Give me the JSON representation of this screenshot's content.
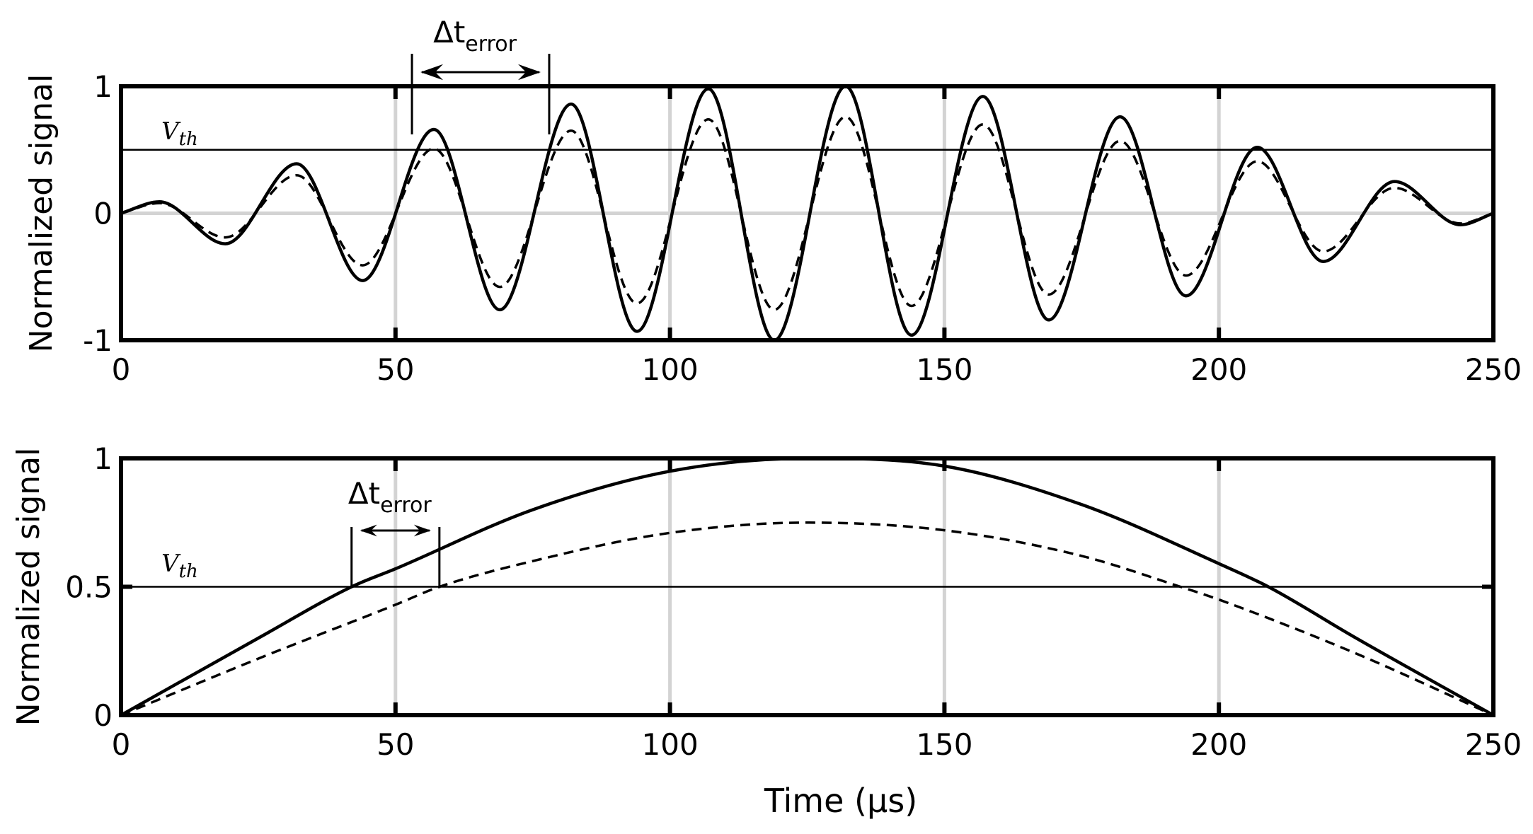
{
  "colors": {
    "curve": "#000000",
    "grid": "#d3d3d3",
    "frame": "#000000",
    "background": "#ffffff"
  },
  "chart_data": [
    {
      "type": "line",
      "ylabel": "Normalized signal",
      "xlim": [
        0,
        250
      ],
      "ylim": [
        -1,
        1
      ],
      "xticks": [
        "0",
        "50",
        "100",
        "150",
        "200",
        "250"
      ],
      "yticks": [
        "-1",
        "0",
        "1"
      ],
      "threshold": {
        "label": "V",
        "label_sub": "th",
        "value": 0.5
      },
      "annotation": {
        "label": "Δt",
        "label_sub": "error",
        "x_start": 53,
        "x_end": 78
      },
      "grid": "vertical",
      "series": [
        {
          "style": "solid",
          "x": [
            0,
            7,
            19,
            32,
            44,
            57,
            69,
            82,
            94,
            107,
            119,
            132,
            144,
            157,
            169,
            182,
            194,
            207,
            219,
            232,
            244,
            250
          ],
          "y": [
            0,
            0.09,
            -0.24,
            0.39,
            -0.53,
            0.66,
            -0.76,
            0.86,
            -0.93,
            0.98,
            -1.0,
            1.0,
            -0.96,
            0.92,
            -0.84,
            0.76,
            -0.65,
            0.52,
            -0.38,
            0.25,
            -0.09,
            0
          ]
        },
        {
          "style": "dashed",
          "x": [
            0,
            7,
            19,
            32,
            44,
            57,
            69,
            82,
            94,
            107,
            119,
            132,
            144,
            157,
            169,
            182,
            194,
            207,
            219,
            232,
            244,
            250
          ],
          "y": [
            0,
            0.08,
            -0.19,
            0.3,
            -0.41,
            0.51,
            -0.58,
            0.65,
            -0.71,
            0.74,
            -0.76,
            0.76,
            -0.73,
            0.7,
            -0.64,
            0.57,
            -0.49,
            0.41,
            -0.3,
            0.2,
            -0.08,
            0
          ]
        }
      ]
    },
    {
      "type": "line",
      "ylabel": "Normalized signal",
      "xlabel": "Time (μs)",
      "xlim": [
        0,
        250
      ],
      "ylim": [
        0,
        1
      ],
      "xticks": [
        "0",
        "50",
        "100",
        "150",
        "200",
        "250"
      ],
      "yticks": [
        "0",
        "0.5",
        "1"
      ],
      "threshold": {
        "label": "V",
        "label_sub": "th",
        "value": 0.5
      },
      "annotation": {
        "label": "Δt",
        "label_sub": "error",
        "x_start": 42,
        "x_end": 58
      },
      "grid": "vertical",
      "series": [
        {
          "style": "solid",
          "x": [
            0,
            25,
            42,
            50,
            75,
            100,
            125,
            150,
            175,
            200,
            209,
            225,
            250
          ],
          "y": [
            0,
            0.3,
            0.5,
            0.57,
            0.8,
            0.95,
            1.0,
            0.97,
            0.82,
            0.59,
            0.5,
            0.3,
            0
          ]
        },
        {
          "style": "dashed",
          "x": [
            0,
            25,
            50,
            58,
            75,
            100,
            125,
            150,
            175,
            193,
            200,
            225,
            250
          ],
          "y": [
            0,
            0.22,
            0.43,
            0.5,
            0.6,
            0.71,
            0.75,
            0.72,
            0.62,
            0.5,
            0.45,
            0.24,
            0
          ]
        }
      ]
    }
  ]
}
